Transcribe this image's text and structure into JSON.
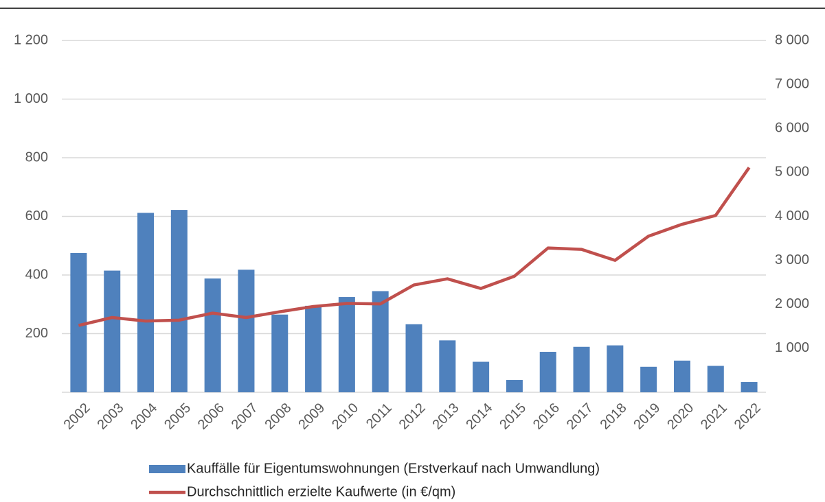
{
  "chart_data": {
    "type": "bar",
    "categories": [
      "2002",
      "2003",
      "2004",
      "2005",
      "2006",
      "2007",
      "2008",
      "2009",
      "2010",
      "2011",
      "2012",
      "2013",
      "2014",
      "2015",
      "2016",
      "2017",
      "2018",
      "2019",
      "2020",
      "2021",
      "2022"
    ],
    "series": [
      {
        "name": "Kauffälle für Eigentumswohnungen (Erstverkauf nach Umwandlung)",
        "type": "bar",
        "color": "#4f81bd",
        "values": [
          475,
          415,
          612,
          622,
          388,
          418,
          265,
          295,
          325,
          345,
          232,
          177,
          104,
          42,
          138,
          155,
          160,
          87,
          108,
          90,
          35
        ]
      },
      {
        "name": "Durchschnittlich erzielte Kaufwerte (in €/qm)",
        "type": "line",
        "axis": "y2",
        "color": "#c0504d",
        "values": [
          1520,
          1700,
          1620,
          1640,
          1800,
          1700,
          1830,
          1950,
          2020,
          2010,
          2440,
          2580,
          2360,
          2640,
          3280,
          3250,
          3000,
          3550,
          3820,
          4020,
          5110
        ]
      }
    ],
    "ylim": [
      0,
      1200
    ],
    "yticks": [
      200,
      400,
      600,
      800,
      {
        "value": 1000,
        "label": "1 000"
      },
      {
        "value": 1200,
        "label": "1 200"
      }
    ],
    "y2lim": [
      0,
      8000
    ],
    "y2ticks": [
      {
        "value": 1000,
        "label": "1 000"
      },
      {
        "value": 2000,
        "label": "2 000"
      },
      {
        "value": 3000,
        "label": "3 000"
      },
      {
        "value": 4000,
        "label": "4 000"
      },
      {
        "value": 5000,
        "label": "5 000"
      },
      {
        "value": 6000,
        "label": "6 000"
      },
      {
        "value": 7000,
        "label": "7 000"
      },
      {
        "value": 8000,
        "label": "8 000"
      }
    ],
    "grid": true
  }
}
